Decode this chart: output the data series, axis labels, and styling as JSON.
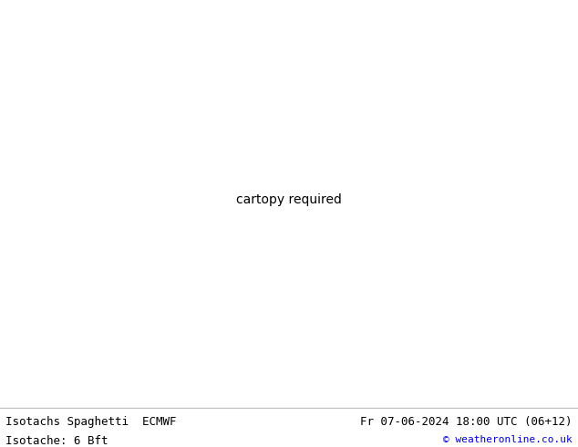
{
  "title_left": "Isotachs Spaghetti  ECMWF",
  "title_right": "Fr 07-06-2024 18:00 UTC (06+12)",
  "subtitle_left": "Isotache: 6 Bft",
  "subtitle_right": "© weatheronline.co.uk",
  "bg_color": "#ffffff",
  "ocean_color": "#e8e8e8",
  "land_color": "#c8ebc8",
  "lake_color": "#c8c8c8",
  "border_color": "#555555",
  "state_color": "#666666",
  "text_color": "#000000",
  "copyright_color": "#0000cc",
  "figsize": [
    6.34,
    4.9
  ],
  "dpi": 100,
  "font_size_main": 9,
  "font_size_copy": 8,
  "extent": [
    -175,
    -50,
    18,
    80
  ],
  "spaghetti_colors": [
    "#ff0000",
    "#00cc00",
    "#0000ff",
    "#ff8800",
    "#cc00cc",
    "#00cccc",
    "#ffcc00",
    "#ff00ff",
    "#00ff00",
    "#ff6600",
    "#aa0000",
    "#0000aa",
    "#00aa00",
    "#aaaa00",
    "#aa00aa",
    "#ff4444",
    "#44ff44",
    "#4444ff",
    "#ffaa44",
    "#aa44ff"
  ],
  "line_width": 0.7,
  "n_spaghetti": 20
}
